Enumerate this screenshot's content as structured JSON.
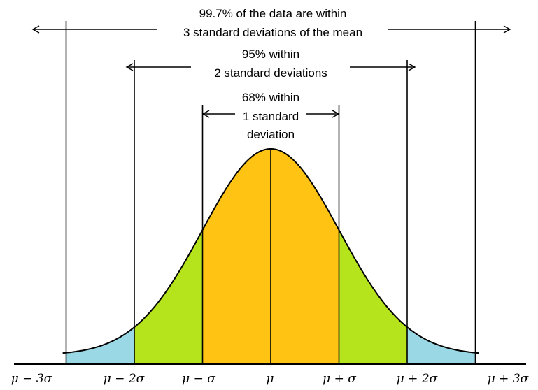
{
  "colors": {
    "band_1sd": "#FFC413",
    "band_2sd": "#B5E31C",
    "band_3sd": "#9AD8E6",
    "curve": "#000000",
    "background": "#FFFFFF"
  },
  "annotations": {
    "sd3_line1": "99.7% of the data are within",
    "sd3_line2": "3 standard deviations of the mean",
    "sd2_line1": "95% within",
    "sd2_line2": "2 standard deviations",
    "sd1_line1": "68% within",
    "sd1_line2": "1 standard",
    "sd1_line3": "deviation"
  },
  "chart_data": {
    "type": "area",
    "distribution": "normal",
    "x_domain": [
      -3,
      3
    ],
    "bands": [
      {
        "from": -1,
        "to": 1,
        "percent": 68,
        "color": "#FFC413"
      },
      {
        "from": -2,
        "to": 2,
        "percent": 95,
        "color": "#B5E31C"
      },
      {
        "from": -3,
        "to": 3,
        "percent": 99.7,
        "color": "#9AD8E6"
      }
    ],
    "tick_labels": [
      "μ − 3σ",
      "μ − 2σ",
      "μ − σ",
      "μ",
      "μ + σ",
      "μ + 2σ",
      "μ + 3σ"
    ],
    "tick_values": [
      -3,
      -2,
      -1,
      0,
      1,
      2,
      3
    ]
  }
}
